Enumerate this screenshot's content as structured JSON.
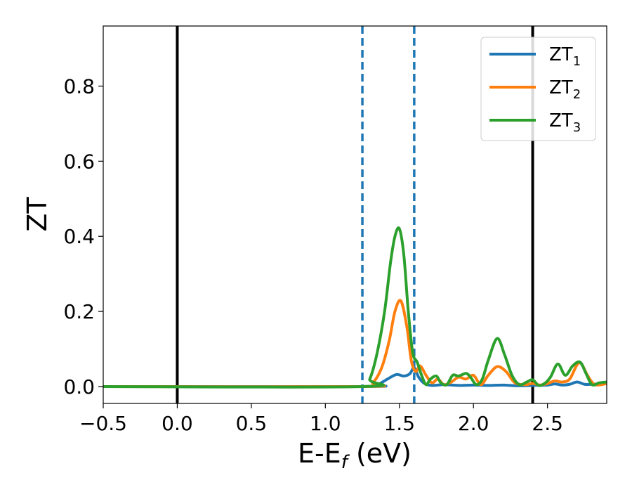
{
  "chart_data": {
    "type": "line",
    "xlabel": "E-E",
    "xlabel_sub": "f",
    "xlabel_unit": " (eV)",
    "ylabel": "ZT",
    "xlim": [
      -0.5,
      2.9
    ],
    "ylim": [
      -0.045,
      0.96
    ],
    "xticks": [
      -0.5,
      0.0,
      0.5,
      1.0,
      1.5,
      2.0,
      2.5
    ],
    "xtick_labels": [
      "−0.5",
      "0.0",
      "0.5",
      "1.0",
      "1.5",
      "2.0",
      "2.5"
    ],
    "yticks": [
      0.0,
      0.2,
      0.4,
      0.6,
      0.8
    ],
    "ytick_labels": [
      "0.0",
      "0.2",
      "0.4",
      "0.6",
      "0.8"
    ],
    "grid": false,
    "legend_position": "top-right",
    "vertical_lines": [
      {
        "x": 0.0,
        "style": "solid",
        "color": "#000000"
      },
      {
        "x": 2.4,
        "style": "solid",
        "color": "#000000"
      },
      {
        "x": 1.25,
        "style": "dashed",
        "color": "#1f77b4"
      },
      {
        "x": 1.6,
        "style": "dashed",
        "color": "#1f77b4"
      }
    ],
    "series": [
      {
        "name": "ZT",
        "name_sub": "1",
        "color": "#1f77b4",
        "x": [
          -0.5,
          1.25,
          1.35,
          1.42,
          1.48,
          1.53,
          1.57,
          1.6,
          1.63,
          1.67,
          1.72,
          1.8,
          1.9,
          2.0,
          2.1,
          2.2,
          2.3,
          2.4,
          2.5,
          2.55,
          2.6,
          2.65,
          2.7,
          2.75,
          2.8,
          2.9
        ],
        "y": [
          0.0,
          0.0,
          0.005,
          0.02,
          0.032,
          0.028,
          0.034,
          0.05,
          0.025,
          0.008,
          0.003,
          0.005,
          0.003,
          0.004,
          0.003,
          0.004,
          0.002,
          0.003,
          0.004,
          0.007,
          0.004,
          0.006,
          0.012,
          0.006,
          0.006,
          0.008
        ]
      },
      {
        "name": "ZT",
        "name_sub": "2",
        "color": "#ff7f0e",
        "x": [
          -0.5,
          1.25,
          1.32,
          1.38,
          1.43,
          1.47,
          1.51,
          1.55,
          1.58,
          1.61,
          1.64,
          1.68,
          1.72,
          1.76,
          1.8,
          1.85,
          1.9,
          1.95,
          2.0,
          2.05,
          2.1,
          2.16,
          2.22,
          2.28,
          2.35,
          2.4,
          2.45,
          2.5,
          2.55,
          2.6,
          2.65,
          2.7,
          2.73,
          2.77,
          2.82,
          2.9
        ],
        "y": [
          0.0,
          0.0,
          0.01,
          0.05,
          0.12,
          0.2,
          0.228,
          0.16,
          0.07,
          0.04,
          0.055,
          0.03,
          0.01,
          0.02,
          0.005,
          0.012,
          0.025,
          0.02,
          0.03,
          0.005,
          0.03,
          0.053,
          0.04,
          0.01,
          0.005,
          0.008,
          0.004,
          0.008,
          0.015,
          0.012,
          0.02,
          0.058,
          0.06,
          0.03,
          0.005,
          0.008
        ]
      },
      {
        "name": "ZT",
        "name_sub": "3",
        "color": "#2ca02c",
        "x": [
          -0.5,
          1.25,
          1.3,
          1.35,
          1.4,
          1.44,
          1.47,
          1.5,
          1.53,
          1.56,
          1.59,
          1.62,
          1.65,
          1.68,
          1.71,
          1.75,
          1.78,
          1.82,
          1.86,
          1.9,
          1.95,
          1.98,
          2.02,
          2.06,
          2.1,
          2.16,
          2.21,
          2.26,
          2.31,
          2.36,
          2.4,
          2.44,
          2.48,
          2.52,
          2.57,
          2.62,
          2.67,
          2.72,
          2.76,
          2.8,
          2.85,
          2.9
        ],
        "y": [
          0.0,
          0.0,
          0.02,
          0.09,
          0.2,
          0.33,
          0.4,
          0.42,
          0.35,
          0.2,
          0.09,
          0.065,
          0.03,
          0.005,
          0.02,
          0.028,
          0.01,
          0.005,
          0.03,
          0.028,
          0.035,
          0.025,
          0.005,
          0.02,
          0.07,
          0.128,
          0.085,
          0.03,
          0.005,
          0.012,
          0.018,
          0.003,
          0.008,
          0.025,
          0.06,
          0.03,
          0.055,
          0.065,
          0.035,
          0.005,
          0.01,
          0.012
        ]
      }
    ]
  }
}
